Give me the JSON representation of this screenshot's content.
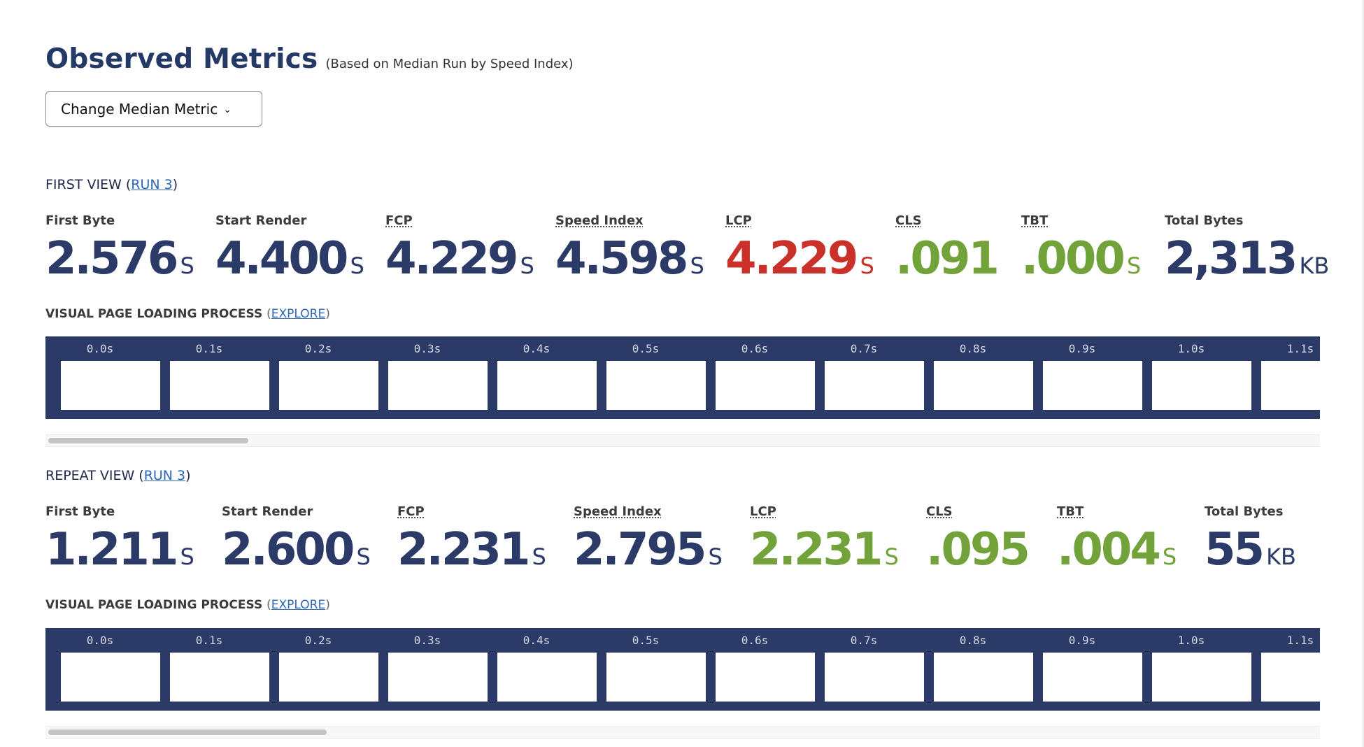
{
  "header": {
    "title": "Observed Metrics",
    "subtitle": "(Based on Median Run by Speed Index)",
    "median_button_label": "Change Median Metric"
  },
  "views": [
    {
      "title_prefix": "FIRST VIEW (",
      "run_link": "RUN 3",
      "title_suffix": ")",
      "metrics": [
        {
          "label": "First Byte",
          "value": "2.576",
          "unit": "S",
          "color": "#2b3a67"
        },
        {
          "label": "Start Render",
          "value": "4.400",
          "unit": "S",
          "color": "#2b3a67"
        },
        {
          "label": "FCP",
          "value": "4.229",
          "unit": "S",
          "color": "#2b3a67"
        },
        {
          "label": "Speed Index",
          "value": "4.598",
          "unit": "S",
          "color": "#2b3a67"
        },
        {
          "label": "LCP",
          "value": "4.229",
          "unit": "S",
          "color": "#c9312a"
        },
        {
          "label": "CLS",
          "value": ".091",
          "unit": "",
          "color": "#72a33a"
        },
        {
          "label": "TBT",
          "value": ".000",
          "unit": "S",
          "color": "#72a33a"
        },
        {
          "label": "Total Bytes",
          "value": "2,313",
          "unit": "KB",
          "color": "#2b3a67"
        }
      ],
      "vplp_label": "VISUAL PAGE LOADING PROCESS",
      "vplp_open": "(",
      "explore_link": "EXPLORE",
      "vplp_close": ")",
      "frames": [
        "0.0s",
        "0.1s",
        "0.2s",
        "0.3s",
        "0.4s",
        "0.5s",
        "0.6s",
        "0.7s",
        "0.8s",
        "0.9s",
        "1.0s",
        "1.1s"
      ]
    },
    {
      "title_prefix": "REPEAT VIEW (",
      "run_link": "RUN 3",
      "title_suffix": ")",
      "metrics": [
        {
          "label": "First Byte",
          "value": "1.211",
          "unit": "S",
          "color": "#2b3a67"
        },
        {
          "label": "Start Render",
          "value": "2.600",
          "unit": "S",
          "color": "#2b3a67"
        },
        {
          "label": "FCP",
          "value": "2.231",
          "unit": "S",
          "color": "#2b3a67"
        },
        {
          "label": "Speed Index",
          "value": "2.795",
          "unit": "S",
          "color": "#2b3a67"
        },
        {
          "label": "LCP",
          "value": "2.231",
          "unit": "S",
          "color": "#72a33a"
        },
        {
          "label": "CLS",
          "value": ".095",
          "unit": "",
          "color": "#72a33a"
        },
        {
          "label": "TBT",
          "value": ".004",
          "unit": "S",
          "color": "#72a33a"
        },
        {
          "label": "Total Bytes",
          "value": "55",
          "unit": "KB",
          "color": "#2b3a67"
        }
      ],
      "vplp_label": "VISUAL PAGE LOADING PROCESS",
      "vplp_open": "(",
      "explore_link": "EXPLORE",
      "vplp_close": ")",
      "frames": [
        "0.0s",
        "0.1s",
        "0.2s",
        "0.3s",
        "0.4s",
        "0.5s",
        "0.6s",
        "0.7s",
        "0.8s",
        "0.9s",
        "1.0s",
        "1.1s"
      ]
    }
  ]
}
